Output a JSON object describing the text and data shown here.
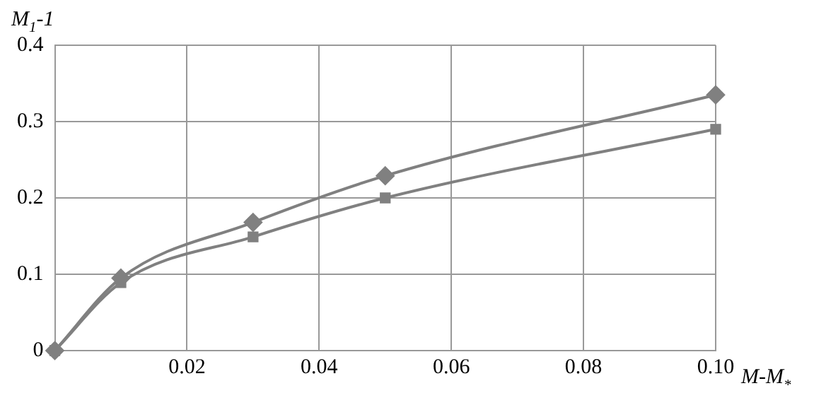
{
  "chart_data": {
    "type": "line",
    "xlabel": "M-M$_{*}$",
    "ylabel": "M$_{1}$-1",
    "series": [
      {
        "color": "#808080",
        "marker": "diamond",
        "x": [
          0,
          0.01,
          0.03,
          0.05,
          0.1
        ],
        "values": [
          0,
          0.095,
          0.168,
          0.229,
          0.335
        ]
      },
      {
        "color": "#808080",
        "marker": "square",
        "x": [
          0,
          0.01,
          0.03,
          0.05,
          0.1
        ],
        "values": [
          0,
          0.089,
          0.149,
          0.2,
          0.29
        ]
      }
    ],
    "xlim": [
      0,
      0.1
    ],
    "xticks": [
      0.02,
      0.04,
      0.06,
      0.08,
      {
        "value": 0.1,
        "label": "0.10"
      }
    ],
    "ylim": [
      0,
      0.4
    ],
    "yticks": [
      0,
      0.1,
      0.2,
      0.3,
      0.4
    ],
    "grid": true,
    "legend": false
  }
}
